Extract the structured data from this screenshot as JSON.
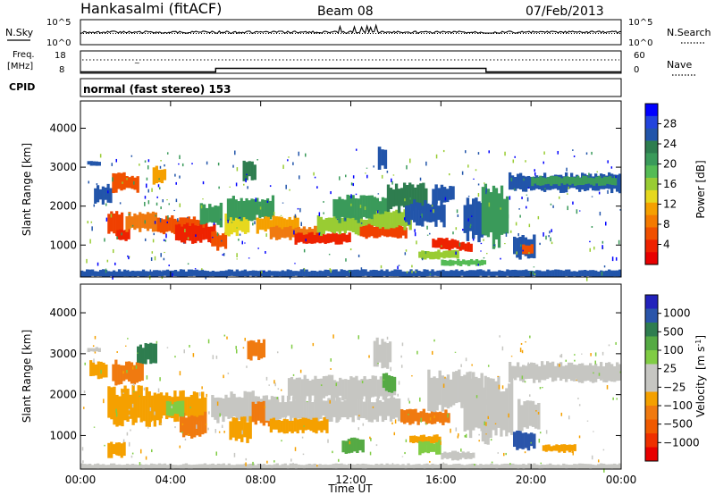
{
  "header": {
    "station": "Hankasalmi (fitACF)",
    "beam": "Beam 08",
    "date": "07/Feb/2013"
  },
  "noise_panel": {
    "left_label": "N.Sky",
    "right_label": "N.Search",
    "left_ticks": [
      "10^5",
      "10^0"
    ],
    "right_ticks": [
      "10^5",
      "10^0"
    ]
  },
  "freq_panel": {
    "left_label_line1": "Freq.",
    "left_label_line2": "[MHz]",
    "right_label": "Nave",
    "left_ticks": [
      "18",
      "8"
    ],
    "right_ticks": [
      "60",
      "0"
    ]
  },
  "cpid": {
    "label": "CPID",
    "mode_text": "normal (fast stereo) 153"
  },
  "chart_data": [
    {
      "type": "line",
      "name": "noise",
      "series": [
        {
          "name": "N.Sky",
          "style": "solid"
        },
        {
          "name": "N.Search",
          "style": "dotted"
        }
      ]
    },
    {
      "type": "line",
      "name": "frequency-nave",
      "x": [
        "00:00",
        "06:00",
        "06:00",
        "18:00",
        "18:00",
        "24:00"
      ],
      "series": [
        {
          "name": "Freq. [MHz]",
          "values": [
            8.6,
            8.6,
            10.2,
            10.2,
            8.6,
            8.6
          ]
        },
        {
          "name": "Nave",
          "values": [
            38,
            38,
            38,
            38,
            38,
            38
          ]
        }
      ]
    },
    {
      "type": "heatmap",
      "name": "power",
      "xlabel": "",
      "ylabel": "Slant Range [km]",
      "x_ticks": [
        "00:00",
        "04:00",
        "08:00",
        "12:00",
        "16:00",
        "20:00",
        "00:00"
      ],
      "y_ticks": [
        1000,
        2000,
        3000,
        4000
      ],
      "ylim": [
        180,
        4700
      ],
      "xlim_hours": [
        0,
        24
      ],
      "colorbar": {
        "label": "Power [dB]",
        "ticks": [
          "28",
          "24",
          "20",
          "16",
          "12",
          "8",
          "4"
        ],
        "colors": [
          "#0000ff",
          "#2244dd",
          "#2255aa",
          "#2e7d4f",
          "#3a9a5a",
          "#55bb55",
          "#99cc33",
          "#e6d81e",
          "#f5a000",
          "#f47a00",
          "#f05000",
          "#ee2200",
          "#e80000"
        ]
      }
    },
    {
      "type": "heatmap",
      "name": "velocity",
      "xlabel": "Time UT",
      "ylabel": "Slant Range [km]",
      "x_ticks": [
        "00:00",
        "04:00",
        "08:00",
        "12:00",
        "16:00",
        "20:00",
        "00:00"
      ],
      "y_ticks": [
        1000,
        2000,
        3000,
        4000
      ],
      "ylim": [
        180,
        4700
      ],
      "xlim_hours": [
        0,
        24
      ],
      "colorbar": {
        "label": "Velocity",
        "unit_base": "[m s",
        "unit_exp": "-1",
        "unit_end": "]",
        "ticks": [
          "1000",
          "500",
          "100",
          "25",
          "−25",
          "−100",
          "−500",
          "−1000"
        ],
        "colors": [
          "#2222bb",
          "#2a55aa",
          "#2e7d4f",
          "#55aa44",
          "#80cc44",
          "#c6c6c2",
          "#c6c6c2",
          "#f4a000",
          "#f07a10",
          "#f05a00",
          "#ee3000",
          "#e80000"
        ]
      }
    }
  ],
  "blobs": {
    "power": [
      [
        1.2,
        1.9,
        1300,
        1800,
        "#f04000"
      ],
      [
        1.6,
        2.2,
        1100,
        1400,
        "#ee2200"
      ],
      [
        2.0,
        3.4,
        1400,
        1800,
        "#f07a10"
      ],
      [
        3.4,
        5.6,
        1300,
        1700,
        "#f05000"
      ],
      [
        4.2,
        6.0,
        1100,
        1500,
        "#ee2200"
      ],
      [
        5.8,
        6.5,
        900,
        1300,
        "#f05000"
      ],
      [
        5.3,
        6.3,
        1500,
        2000,
        "#3a9a5a"
      ],
      [
        6.4,
        7.5,
        1300,
        1800,
        "#e6d81e"
      ],
      [
        6.5,
        8.6,
        1700,
        2200,
        "#3a9a5a"
      ],
      [
        7.8,
        9.7,
        1350,
        1700,
        "#f5a000"
      ],
      [
        8.4,
        10.6,
        1150,
        1450,
        "#f07a10"
      ],
      [
        9.5,
        12.0,
        1050,
        1300,
        "#ee2200"
      ],
      [
        10.5,
        13.0,
        1300,
        1700,
        "#99cc33"
      ],
      [
        11.2,
        13.6,
        1650,
        2200,
        "#3a9a5a"
      ],
      [
        12.4,
        14.5,
        1200,
        1500,
        "#f04000"
      ],
      [
        13.0,
        14.7,
        1450,
        1850,
        "#99cc33"
      ],
      [
        13.6,
        15.4,
        1900,
        2500,
        "#2e7d4f"
      ],
      [
        14.4,
        16.2,
        1550,
        2100,
        "#2255aa"
      ],
      [
        15.0,
        16.8,
        650,
        850,
        "#99cc33"
      ],
      [
        15.6,
        16.8,
        900,
        1150,
        "#ee2200"
      ],
      [
        16.8,
        17.4,
        850,
        1050,
        "#ee2200"
      ],
      [
        16.0,
        18.0,
        480,
        620,
        "#55bb55"
      ],
      [
        17.0,
        18.0,
        1200,
        2100,
        "#2255aa"
      ],
      [
        17.8,
        19.0,
        1100,
        2400,
        "#3a9a5a"
      ],
      [
        19.2,
        20.2,
        700,
        1200,
        "#2255aa"
      ],
      [
        19.6,
        20.1,
        800,
        1000,
        "#f05000"
      ],
      [
        19.0,
        24.0,
        2400,
        2800,
        "#2255aa"
      ],
      [
        20.0,
        23.8,
        2550,
        2750,
        "#3a9a5a"
      ],
      [
        0.3,
        0.9,
        3050,
        3150,
        "#2255aa"
      ],
      [
        0.6,
        1.4,
        2100,
        2500,
        "#2255aa"
      ],
      [
        1.4,
        2.6,
        2400,
        2800,
        "#f05000"
      ],
      [
        3.2,
        3.8,
        2600,
        3000,
        "#f5a000"
      ],
      [
        7.2,
        7.8,
        2700,
        3100,
        "#2e7d4f"
      ],
      [
        13.2,
        13.6,
        3000,
        3500,
        "#2255aa"
      ],
      [
        15.6,
        16.6,
        2100,
        2500,
        "#2255aa"
      ],
      [
        0.0,
        24.0,
        180,
        350,
        "#2255aa"
      ]
    ],
    "velocity": [
      [
        0.3,
        0.9,
        3050,
        3150,
        "#c6c6c2"
      ],
      [
        0.4,
        1.2,
        2400,
        2800,
        "#f5a000"
      ],
      [
        1.2,
        3.6,
        1300,
        2100,
        "#f5a000"
      ],
      [
        1.4,
        2.8,
        2300,
        2800,
        "#f07a10"
      ],
      [
        2.5,
        3.4,
        2800,
        3200,
        "#2e7d4f"
      ],
      [
        3.4,
        5.6,
        1400,
        2000,
        "#f5a000"
      ],
      [
        4.4,
        5.6,
        1000,
        1500,
        "#f07a10"
      ],
      [
        5.8,
        8.2,
        1400,
        2000,
        "#c6c6c2"
      ],
      [
        6.6,
        7.6,
        900,
        1400,
        "#f5a000"
      ],
      [
        7.6,
        8.8,
        1300,
        1800,
        "#f07a10"
      ],
      [
        7.4,
        8.2,
        2900,
        3300,
        "#f07a10"
      ],
      [
        8.2,
        14.2,
        1400,
        1900,
        "#c6c6c2"
      ],
      [
        8.4,
        11.0,
        1100,
        1400,
        "#f5a000"
      ],
      [
        9.2,
        10.6,
        1900,
        2400,
        "#c6c6c2"
      ],
      [
        10.5,
        14.0,
        1900,
        2400,
        "#c6c6c2"
      ],
      [
        13.0,
        13.8,
        2700,
        3300,
        "#c6c6c2"
      ],
      [
        13.4,
        14.0,
        2100,
        2500,
        "#55aa44"
      ],
      [
        14.2,
        16.4,
        1300,
        1600,
        "#f07a10"
      ],
      [
        14.6,
        16.0,
        800,
        1000,
        "#f5a000"
      ],
      [
        15.4,
        17.6,
        1700,
        2500,
        "#c6c6c2"
      ],
      [
        15.0,
        16.0,
        550,
        850,
        "#80cc44"
      ],
      [
        16.0,
        17.5,
        420,
        600,
        "#c6c6c2"
      ],
      [
        17.0,
        18.0,
        1100,
        2400,
        "#c6c6c2"
      ],
      [
        17.8,
        19.2,
        1000,
        2300,
        "#c6c6c2"
      ],
      [
        19.2,
        20.2,
        700,
        1100,
        "#2a55aa"
      ],
      [
        19.4,
        20.4,
        1200,
        1800,
        "#c6c6c2"
      ],
      [
        19.0,
        24.0,
        2350,
        2750,
        "#c6c6c2"
      ],
      [
        22.0,
        24.0,
        2350,
        2650,
        "#c6c6c2"
      ],
      [
        20.5,
        22.0,
        600,
        760,
        "#f5a000"
      ],
      [
        3.8,
        4.6,
        1500,
        1800,
        "#80cc44"
      ],
      [
        1.2,
        2.0,
        500,
        800,
        "#f5a000"
      ],
      [
        11.6,
        12.6,
        600,
        900,
        "#55aa44"
      ],
      [
        0.0,
        24.0,
        180,
        300,
        "#c6c6c2"
      ]
    ]
  }
}
